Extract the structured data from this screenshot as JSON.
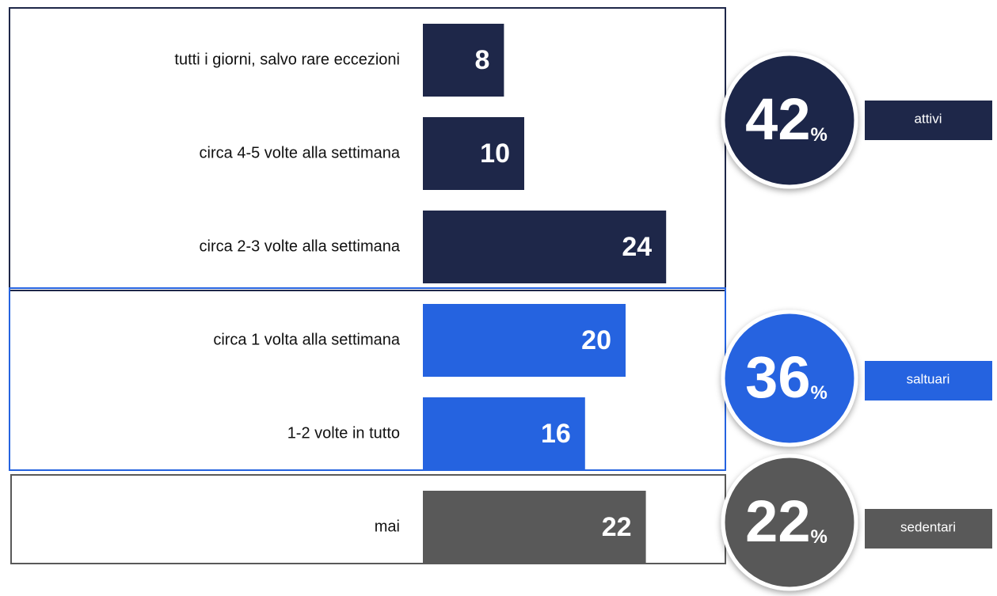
{
  "chart_data": {
    "type": "bar",
    "unit": "%",
    "series": [
      {
        "name": "attivi",
        "color": "#1e2749",
        "total": 42,
        "categories": [
          "tutti i giorni, salvo rare eccezioni",
          "circa 4-5 volte alla settimana",
          "circa 2-3 volte alla settimana"
        ],
        "values": [
          8,
          10,
          24
        ]
      },
      {
        "name": "saltuari",
        "color": "#2563e0",
        "total": 36,
        "categories": [
          "circa 1 volta alla settimana",
          "1-2 volte in tutto"
        ],
        "values": [
          20,
          16
        ]
      },
      {
        "name": "sedentari",
        "color": "#595959",
        "total": 22,
        "categories": [
          "mai"
        ],
        "values": [
          22
        ]
      }
    ]
  }
}
